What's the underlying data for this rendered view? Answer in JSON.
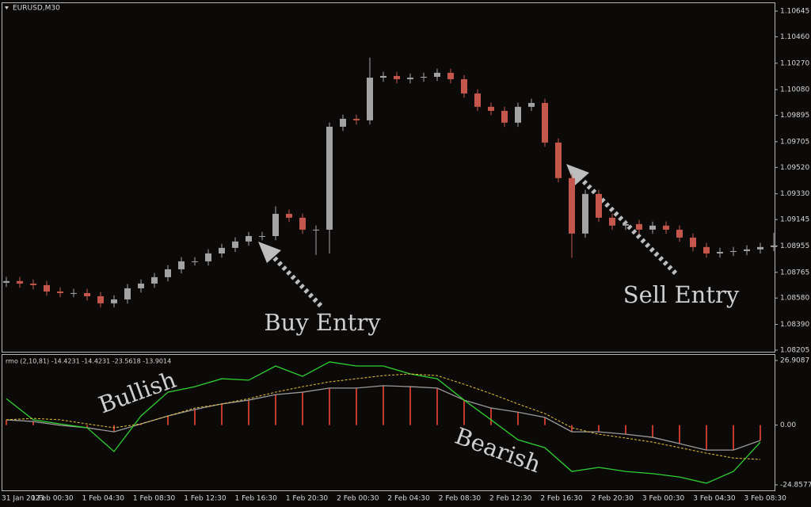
{
  "chart_data": [
    {
      "type": "candlestick",
      "title": "EURUSD,M30",
      "open": [
        1.0869,
        1.08702,
        1.08684,
        1.08673,
        1.08627,
        1.08616,
        1.08616,
        1.08593,
        1.08542,
        1.0857,
        1.0865,
        1.08684,
        1.0873,
        1.08787,
        1.08844,
        1.08844,
        1.08901,
        1.08941,
        1.08987,
        1.09026,
        1.09026,
        1.09186,
        1.09158,
        1.09072,
        1.09072,
        1.09813,
        1.0987,
        1.09859,
        1.10166,
        1.10178,
        1.10155,
        1.10166,
        1.10172,
        1.10201,
        1.10155,
        1.10052,
        1.09956,
        1.09927,
        1.09842,
        1.09956,
        1.09984,
        1.09699,
        1.09443,
        1.09044,
        1.09329,
        1.09158,
        1.09101,
        1.09112,
        1.09072,
        1.09101,
        1.09072,
        1.09015,
        1.08947,
        1.08901,
        1.08912,
        1.08918,
        1.0893,
        1.08947
      ],
      "high": [
        1.08732,
        1.08732,
        1.08714,
        1.08703,
        1.08657,
        1.08646,
        1.08646,
        1.08623,
        1.086,
        1.0868,
        1.08714,
        1.0876,
        1.08817,
        1.08874,
        1.08874,
        1.08931,
        1.08971,
        1.09017,
        1.09056,
        1.09056,
        1.0924,
        1.09216,
        1.09188,
        1.09102,
        1.09843,
        1.099,
        1.099,
        1.1031,
        1.10208,
        1.10208,
        1.10196,
        1.10202,
        1.10231,
        1.10231,
        1.10185,
        1.10082,
        1.09986,
        1.09957,
        1.09986,
        1.10014,
        1.10014,
        1.09729,
        1.09473,
        1.09359,
        1.09359,
        1.09188,
        1.09142,
        1.09142,
        1.09131,
        1.09131,
        1.09102,
        1.09045,
        1.08977,
        1.08942,
        1.08948,
        1.0896,
        1.08977,
        1.0905
      ],
      "low": [
        1.0866,
        1.08654,
        1.08643,
        1.08597,
        1.08586,
        1.08586,
        1.08563,
        1.08512,
        1.08512,
        1.0854,
        1.0862,
        1.08654,
        1.087,
        1.08757,
        1.08814,
        1.08814,
        1.08871,
        1.08911,
        1.08957,
        1.08996,
        1.08996,
        1.09128,
        1.09042,
        1.0889,
        1.089,
        1.09783,
        1.09829,
        1.09829,
        1.10136,
        1.10125,
        1.10125,
        1.10136,
        1.10142,
        1.10125,
        1.10022,
        1.09926,
        1.09897,
        1.09812,
        1.09812,
        1.09926,
        1.09669,
        1.09413,
        1.0887,
        1.09014,
        1.09128,
        1.09071,
        1.09071,
        1.09042,
        1.09042,
        1.09042,
        1.08985,
        1.08917,
        1.08871,
        1.08871,
        1.08882,
        1.08888,
        1.089,
        1.08917
      ],
      "close": [
        1.08702,
        1.08684,
        1.08673,
        1.08627,
        1.08616,
        1.08616,
        1.08593,
        1.08542,
        1.0857,
        1.0865,
        1.08684,
        1.0873,
        1.08787,
        1.08844,
        1.08844,
        1.08901,
        1.08941,
        1.08987,
        1.09026,
        1.09026,
        1.09186,
        1.09158,
        1.09072,
        1.09072,
        1.09813,
        1.0987,
        1.09859,
        1.10166,
        1.10178,
        1.10155,
        1.10166,
        1.10172,
        1.10201,
        1.10155,
        1.10052,
        1.09956,
        1.09927,
        1.09842,
        1.09956,
        1.09984,
        1.09699,
        1.09443,
        1.09044,
        1.09329,
        1.09158,
        1.09101,
        1.09112,
        1.09072,
        1.09101,
        1.09072,
        1.09015,
        1.08947,
        1.08901,
        1.08912,
        1.08918,
        1.0893,
        1.08947,
        1.08958
      ],
      "up_color": "#a3a3a3",
      "down_color": "#c4564b",
      "ylim": [
        1.08205,
        1.10645
      ],
      "yticks": [
        1.10645,
        {
          "value": 1.1046,
          "label": "1.10460"
        },
        {
          "value": 1.1027,
          "label": "1.10270"
        },
        {
          "value": 1.1008,
          "label": "1.10080"
        },
        1.09895,
        1.09705,
        {
          "value": 1.0952,
          "label": "1.09520"
        },
        {
          "value": 1.0933,
          "label": "1.09330"
        },
        1.09145,
        1.08955,
        1.08765,
        {
          "value": 1.0858,
          "label": "1.08580"
        },
        {
          "value": 1.0839,
          "label": "1.08390"
        },
        1.08205
      ],
      "annotations": [
        "Buy Entry",
        "Sell Entry"
      ]
    },
    {
      "type": "indicator",
      "title": "rmo (2,10,81) -14.4231 -14.4231 -23.5618 -13.9014",
      "series": [
        {
          "color": "#c0392b",
          "style": "histogram",
          "values": [
            2.2,
            1.5,
            -0.1,
            -1.1,
            -2.8,
            0.5,
            3.8,
            6.5,
            8.8,
            10.4,
            12.7,
            13.7,
            15.4,
            15.4,
            16.4,
            16.0,
            15.4,
            10.4,
            7.1,
            5.4,
            3.2,
            -2.8,
            -2.8,
            -3.8,
            -5.1,
            -7.7,
            -10.4,
            -10.4,
            -6.4
          ]
        },
        {
          "color": "#9a9a9a",
          "style": "line",
          "values": [
            2.2,
            1.5,
            -0.1,
            -1.1,
            -2.8,
            0.5,
            3.8,
            6.5,
            8.8,
            10.4,
            12.7,
            13.7,
            15.4,
            15.4,
            16.4,
            16.0,
            15.4,
            10.4,
            7.1,
            5.4,
            3.2,
            -2.8,
            -2.8,
            -3.8,
            -5.1,
            -7.7,
            -10.4,
            -10.4,
            -6.4
          ]
        },
        {
          "color": "#2fd02f",
          "style": "line",
          "values": [
            11.0,
            2.2,
            0.5,
            -1.1,
            -11.0,
            3.8,
            13.7,
            16.0,
            19.3,
            18.7,
            24.6,
            20.3,
            26.3,
            24.6,
            24.6,
            21.3,
            19.3,
            10.4,
            2.2,
            -6.1,
            -9.4,
            -19.3,
            -17.6,
            -19.3,
            -20.2,
            -21.6,
            -24.2,
            -19.3,
            -7.1
          ]
        },
        {
          "color": "#e8c23a",
          "style": "dashed",
          "values": [
            2.2,
            2.8,
            2.2,
            0.5,
            -1.1,
            0.5,
            3.8,
            7.1,
            8.8,
            11.0,
            13.7,
            16.0,
            18.0,
            19.3,
            20.6,
            21.3,
            20.6,
            17.0,
            13.1,
            8.8,
            4.8,
            -1.1,
            -3.8,
            -5.4,
            -7.1,
            -9.4,
            -11.7,
            -13.7,
            -14.3
          ]
        }
      ],
      "ylim": [
        -24.8577,
        26.9087
      ],
      "yticks": [
        26.9087,
        {
          "value": 0,
          "label": "0.00"
        },
        -24.8577
      ],
      "annotations": [
        "Bullish",
        "Bearish"
      ],
      "x_labels": [
        "31 Jan 2023",
        "1 Feb 00:30",
        "1 Feb 04:30",
        "1 Feb 08:30",
        "1 Feb 12:30",
        "1 Feb 16:30",
        "1 Feb 20:30",
        "2 Feb 00:30",
        "2 Feb 04:30",
        "2 Feb 08:30",
        "2 Feb 12:30",
        "2 Feb 16:30",
        "2 Feb 20:30",
        "3 Feb 00:30",
        "3 Feb 04:30",
        "3 Feb 08:30"
      ]
    }
  ]
}
